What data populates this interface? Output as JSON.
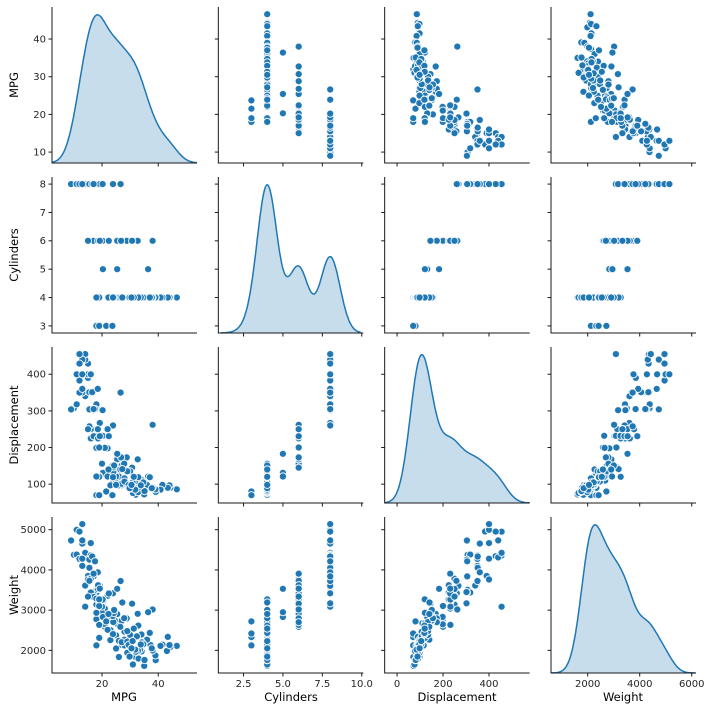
{
  "chart_data": {
    "type": "scatter",
    "subtype": "pairplot-matrix",
    "title": "",
    "variables": [
      "MPG",
      "Cylinders",
      "Displacement",
      "Weight"
    ],
    "diagonal": "kde",
    "legend": "none",
    "grid": false,
    "marker_color": "#1f77b4",
    "marker_edge_color": "#ffffff",
    "kde_line_color": "#1f77b4",
    "kde_fill_color": "#1f77b4",
    "kde_fill_opacity": 0.25,
    "spine_color": "#1a1a1a",
    "tick_label_color": "#262626",
    "axes": {
      "MPG": {
        "x_range": [
          2.2,
          53.8
        ],
        "y_range": [
          7.1,
          48.5
        ],
        "x_ticks": {
          "values": [
            20,
            40
          ],
          "labels": [
            "20",
            "40"
          ]
        },
        "y_ticks": {
          "values": [
            10,
            20,
            30,
            40
          ],
          "labels": [
            "10",
            "20",
            "30",
            "40"
          ]
        }
      },
      "Cylinders": {
        "x_range": [
          0.9,
          10.1
        ],
        "y_range": [
          2.75,
          8.25
        ],
        "x_ticks": {
          "values": [
            2.5,
            5.0,
            7.5,
            10.0
          ],
          "labels": [
            "2.5",
            "5.0",
            "7.5",
            "10.0"
          ]
        },
        "y_ticks": {
          "values": [
            3,
            4,
            5,
            6,
            7,
            8
          ],
          "labels": [
            "3",
            "4",
            "5",
            "6",
            "7",
            "8"
          ]
        }
      },
      "Displacement": {
        "x_range": [
          -54,
          577
        ],
        "y_range": [
          48.6,
          474.4
        ],
        "x_ticks": {
          "values": [
            0,
            200,
            400
          ],
          "labels": [
            "0",
            "200",
            "400"
          ]
        },
        "y_ticks": {
          "values": [
            100,
            200,
            300,
            400
          ],
          "labels": [
            "100",
            "200",
            "300",
            "400"
          ]
        }
      },
      "Weight": {
        "x_range": [
          589,
          6164
        ],
        "y_range": [
          1437,
          5316
        ],
        "x_ticks": {
          "values": [
            2000,
            4000,
            6000
          ],
          "labels": [
            "2000",
            "4000",
            "6000"
          ]
        },
        "y_ticks": {
          "values": [
            2000,
            3000,
            4000,
            5000
          ],
          "labels": [
            "2000",
            "3000",
            "4000",
            "5000"
          ]
        }
      }
    },
    "point_columns": [
      "MPG",
      "Cylinders",
      "Displacement",
      "Weight"
    ],
    "points": [
      [
        18,
        8,
        307,
        3504
      ],
      [
        15,
        8,
        350,
        3693
      ],
      [
        18,
        8,
        318,
        3436
      ],
      [
        16,
        8,
        304,
        3433
      ],
      [
        17,
        8,
        302,
        3449
      ],
      [
        15,
        8,
        429,
        4341
      ],
      [
        14,
        8,
        454,
        4354
      ],
      [
        14,
        8,
        440,
        4312
      ],
      [
        14,
        8,
        455,
        4425
      ],
      [
        15,
        8,
        390,
        3850
      ],
      [
        14,
        8,
        340,
        3609
      ],
      [
        15,
        8,
        400,
        3761
      ],
      [
        14,
        8,
        455,
        3086
      ],
      [
        10,
        8,
        307,
        4376
      ],
      [
        11,
        8,
        318,
        4382
      ],
      [
        9,
        8,
        304,
        4732
      ],
      [
        13,
        8,
        350,
        4100
      ],
      [
        12,
        8,
        350,
        4274
      ],
      [
        13,
        8,
        400,
        4278
      ],
      [
        12,
        8,
        383,
        4955
      ],
      [
        16,
        8,
        400,
        4668
      ],
      [
        13,
        8,
        360,
        4654
      ],
      [
        13,
        8,
        440,
        4735
      ],
      [
        12,
        8,
        455,
        4951
      ],
      [
        11,
        8,
        400,
        4997
      ],
      [
        12,
        8,
        429,
        4952
      ],
      [
        13,
        8,
        400,
        5140
      ],
      [
        16,
        8,
        351,
        4363
      ],
      [
        15.5,
        8,
        304,
        4257
      ],
      [
        15.5,
        8,
        351,
        4054
      ],
      [
        16.5,
        8,
        351,
        4335
      ],
      [
        17.5,
        8,
        305,
        4215
      ],
      [
        18.5,
        8,
        360,
        3940
      ],
      [
        19.2,
        8,
        267,
        3605
      ],
      [
        20.2,
        8,
        302,
        3169
      ],
      [
        26.6,
        8,
        350,
        3725
      ],
      [
        23.9,
        8,
        260,
        3420
      ],
      [
        17,
        8,
        305,
        3840
      ],
      [
        18,
        6,
        199,
        2774
      ],
      [
        21,
        6,
        200,
        2587
      ],
      [
        22,
        6,
        198,
        2833
      ],
      [
        21,
        6,
        199,
        2648
      ],
      [
        19,
        6,
        232,
        2634
      ],
      [
        16,
        6,
        225,
        3439
      ],
      [
        17,
        6,
        250,
        3329
      ],
      [
        21,
        6,
        231,
        3039
      ],
      [
        18,
        6,
        250,
        3139
      ],
      [
        22,
        6,
        250,
        3353
      ],
      [
        20,
        6,
        156,
        2930
      ],
      [
        19,
        6,
        232,
        3211
      ],
      [
        20.5,
        6,
        231,
        3245
      ],
      [
        18,
        6,
        232,
        3288
      ],
      [
        19,
        6,
        225,
        3264
      ],
      [
        20,
        6,
        232,
        3085
      ],
      [
        18.5,
        6,
        250,
        3525
      ],
      [
        16,
        6,
        250,
        3781
      ],
      [
        15.5,
        6,
        258,
        3730
      ],
      [
        17,
        6,
        231,
        3907
      ],
      [
        19,
        6,
        200,
        3102
      ],
      [
        18.6,
        6,
        225,
        3620
      ],
      [
        20.2,
        6,
        232,
        3265
      ],
      [
        22.4,
        6,
        231,
        3415
      ],
      [
        19.2,
        6,
        231,
        3535
      ],
      [
        25.4,
        6,
        168,
        2900
      ],
      [
        32.7,
        6,
        168,
        2910
      ],
      [
        28.8,
        6,
        173,
        2795
      ],
      [
        26.8,
        6,
        173,
        2700
      ],
      [
        30.7,
        6,
        145,
        3160
      ],
      [
        38,
        6,
        262,
        3015
      ],
      [
        15,
        6,
        250,
        3336
      ],
      [
        20.3,
        5,
        131,
        2830
      ],
      [
        25.4,
        5,
        183,
        3530
      ],
      [
        36.4,
        5,
        121,
        2950
      ],
      [
        18,
        3,
        70,
        2124
      ],
      [
        19,
        3,
        70,
        2330
      ],
      [
        21.5,
        3,
        80,
        2720
      ],
      [
        23.7,
        3,
        70,
        2420
      ],
      [
        24,
        4,
        113,
        2372
      ],
      [
        27,
        4,
        97,
        2130
      ],
      [
        26,
        4,
        97,
        1835
      ],
      [
        25,
        4,
        110,
        2672
      ],
      [
        24,
        4,
        107,
        2430
      ],
      [
        25,
        4,
        104,
        2375
      ],
      [
        26,
        4,
        121,
        2234
      ],
      [
        28,
        4,
        140,
        2264
      ],
      [
        19,
        4,
        122,
        2310
      ],
      [
        35,
        4,
        72,
        1613
      ],
      [
        31,
        4,
        79,
        1950
      ],
      [
        32,
        4,
        71,
        1836
      ],
      [
        31,
        4,
        76,
        1649
      ],
      [
        30,
        4,
        88,
        2065
      ],
      [
        46.6,
        4,
        86,
        2110
      ],
      [
        44.3,
        4,
        90,
        2085
      ],
      [
        43.1,
        4,
        90,
        1985
      ],
      [
        44,
        4,
        97,
        2130
      ],
      [
        43.4,
        4,
        90,
        2335
      ],
      [
        41.5,
        4,
        98,
        2144
      ],
      [
        40.8,
        4,
        85,
        2110
      ],
      [
        39.1,
        4,
        79,
        1755
      ],
      [
        39,
        4,
        86,
        1875
      ],
      [
        37.3,
        4,
        91,
        2130
      ],
      [
        36,
        4,
        98,
        2265
      ],
      [
        34.1,
        4,
        86,
        1975
      ],
      [
        33.5,
        4,
        85,
        2020
      ],
      [
        32.8,
        4,
        78,
        1985
      ],
      [
        31.5,
        4,
        89,
        1990
      ],
      [
        29,
        4,
        97,
        1940
      ],
      [
        23,
        4,
        120,
        2506
      ],
      [
        23,
        4,
        97,
        2254
      ],
      [
        19,
        4,
        120,
        3270
      ],
      [
        18,
        4,
        121,
        2933
      ],
      [
        22,
        4,
        121,
        2511
      ],
      [
        25,
        4,
        121,
        2671
      ],
      [
        28,
        4,
        116,
        2123
      ],
      [
        27,
        4,
        101,
        2202
      ],
      [
        34,
        4,
        112,
        2395
      ],
      [
        38,
        4,
        91,
        1995
      ],
      [
        32,
        4,
        91,
        1965
      ],
      [
        30,
        4,
        135,
        2385
      ],
      [
        27,
        4,
        151,
        2735
      ],
      [
        24.5,
        4,
        151,
        2740
      ],
      [
        33,
        4,
        91,
        1795
      ],
      [
        29,
        4,
        98,
        2219
      ],
      [
        24,
        4,
        134,
        2702
      ],
      [
        28,
        4,
        107,
        2464
      ],
      [
        23.8,
        4,
        151,
        2855
      ],
      [
        29,
        4,
        135,
        2480
      ],
      [
        32.4,
        4,
        108,
        2350
      ],
      [
        27.9,
        4,
        156,
        2800
      ],
      [
        34.2,
        4,
        105,
        2200
      ],
      [
        24.2,
        4,
        146,
        2930
      ],
      [
        26.5,
        4,
        140,
        2585
      ],
      [
        29.5,
        4,
        98,
        2135
      ],
      [
        35.1,
        4,
        81,
        1760
      ],
      [
        37.7,
        4,
        89,
        2050
      ],
      [
        34.7,
        4,
        105,
        2150
      ],
      [
        25,
        4,
        98,
        2046
      ],
      [
        33.8,
        4,
        97,
        2145
      ],
      [
        30.9,
        4,
        105,
        2230
      ],
      [
        27.2,
        4,
        141,
        3190
      ],
      [
        24.3,
        4,
        151,
        3003
      ],
      [
        22.3,
        4,
        140,
        2905
      ],
      [
        23.9,
        4,
        119,
        2405
      ],
      [
        31.8,
        4,
        85,
        2020
      ],
      [
        37,
        4,
        119,
        2434
      ],
      [
        32.9,
        4,
        119,
        2615
      ],
      [
        29.8,
        4,
        89,
        1845
      ],
      [
        31.3,
        4,
        120,
        2542
      ],
      [
        30.5,
        4,
        98,
        2051
      ]
    ]
  }
}
